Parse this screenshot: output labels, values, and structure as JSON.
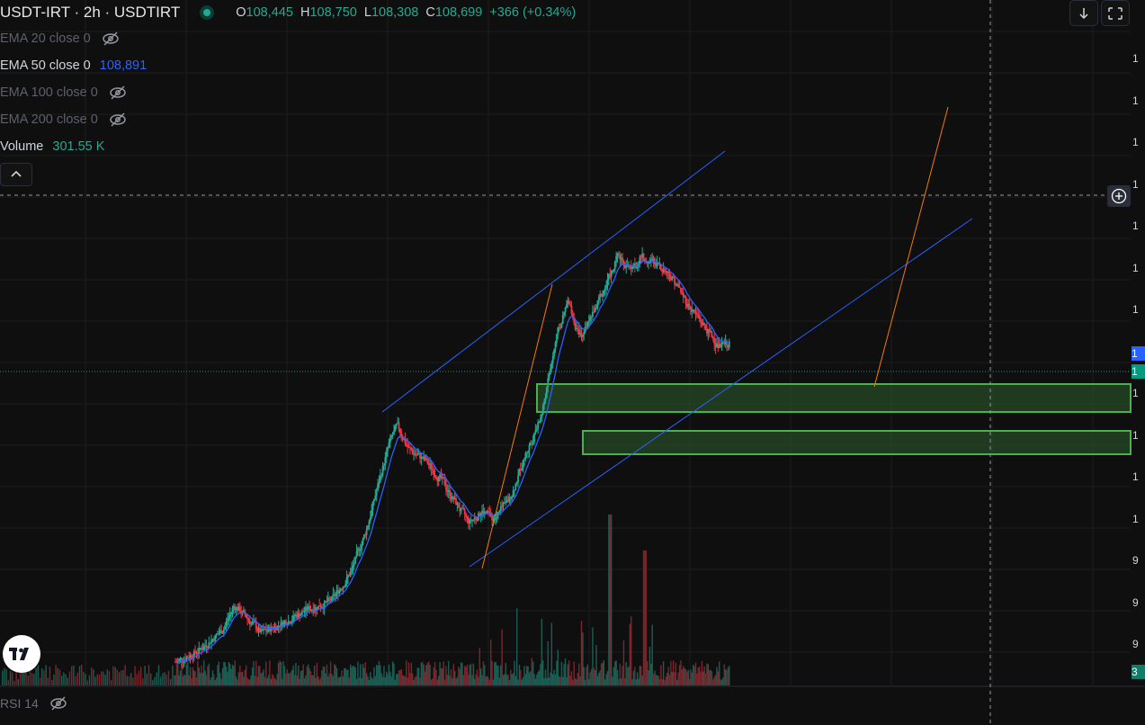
{
  "header": {
    "symbol_title": "USDT-IRT · 2h · USDTIRT",
    "ohlc": {
      "o_key": "O",
      "o_val": "108,445",
      "h_key": "H",
      "h_val": "108,750",
      "l_key": "L",
      "l_val": "108,308",
      "c_key": "C",
      "c_val": "108,699",
      "change": "+366 (+0.34%)"
    }
  },
  "indicators": [
    {
      "label": "EMA 20 close 0",
      "value": "",
      "visible": false
    },
    {
      "label": "EMA 50 close 0",
      "value": "108,891",
      "visible": true,
      "color": "#2962ff"
    },
    {
      "label": "EMA 100 close 0",
      "value": "",
      "visible": false
    },
    {
      "label": "EMA 200 close 0",
      "value": "",
      "visible": false
    },
    {
      "label": "Volume",
      "value": "301.55 K",
      "visible": true,
      "color": "#22ab94"
    }
  ],
  "rsi": {
    "label": "RSI 14",
    "visible": false
  },
  "colors": {
    "background": "#0f0f0f",
    "up": "#22ab94",
    "down": "#f23645",
    "ema": "#2962ff",
    "trendline": "#2962ff",
    "fib_line": "#f57c00",
    "zone_fill": "#2e5e2e",
    "zone_border": "#4caf50"
  },
  "icons": {
    "status": "market-open-dot-icon",
    "hidden": "eye-off-icon",
    "collapse": "chevron-up-icon",
    "download": "arrow-down-icon",
    "fullscreen": "fullscreen-icon",
    "add": "plus-circle-icon",
    "logo": "tradingview-logo-icon"
  },
  "price_axis": {
    "visible_tick_fragments": [
      "1",
      "1",
      "1",
      "1",
      "1",
      "1",
      "1",
      "1",
      "1",
      "1",
      "1",
      "1",
      "9",
      "9",
      "9"
    ],
    "tag_ema": "1",
    "tag_price": "1",
    "tag_volume": "3"
  },
  "chart_data": {
    "type": "candlestick",
    "symbol": "USDT-IRT",
    "interval": "2h",
    "last": {
      "open": 108445,
      "high": 108750,
      "low": 108308,
      "close": 108699,
      "change": 366,
      "change_pct": 0.34
    },
    "ema50_last": 108891,
    "volume_last": 301550,
    "price_path_approx": [
      [
        0,
        93000
      ],
      [
        30,
        93600
      ],
      [
        60,
        94600
      ],
      [
        75,
        95800
      ],
      [
        90,
        95200
      ],
      [
        110,
        94400
      ],
      [
        140,
        95000
      ],
      [
        170,
        95600
      ],
      [
        200,
        96000
      ],
      [
        225,
        97400
      ],
      [
        245,
        99500
      ],
      [
        262,
        102000
      ],
      [
        275,
        103800
      ],
      [
        285,
        104600
      ],
      [
        300,
        103400
      ],
      [
        320,
        102900
      ],
      [
        340,
        102000
      ],
      [
        360,
        100800
      ],
      [
        377,
        99800
      ],
      [
        395,
        100400
      ],
      [
        410,
        100000
      ],
      [
        430,
        101000
      ],
      [
        450,
        103200
      ],
      [
        470,
        105000
      ],
      [
        490,
        109000
      ],
      [
        505,
        110700
      ],
      [
        520,
        108800
      ],
      [
        540,
        110400
      ],
      [
        555,
        111600
      ],
      [
        570,
        113000
      ],
      [
        585,
        112200
      ],
      [
        600,
        112900
      ],
      [
        620,
        112600
      ],
      [
        640,
        111800
      ],
      [
        660,
        110500
      ],
      [
        680,
        109500
      ],
      [
        700,
        108400
      ],
      [
        715,
        108700
      ]
    ],
    "grid": true,
    "crosshair": true
  }
}
